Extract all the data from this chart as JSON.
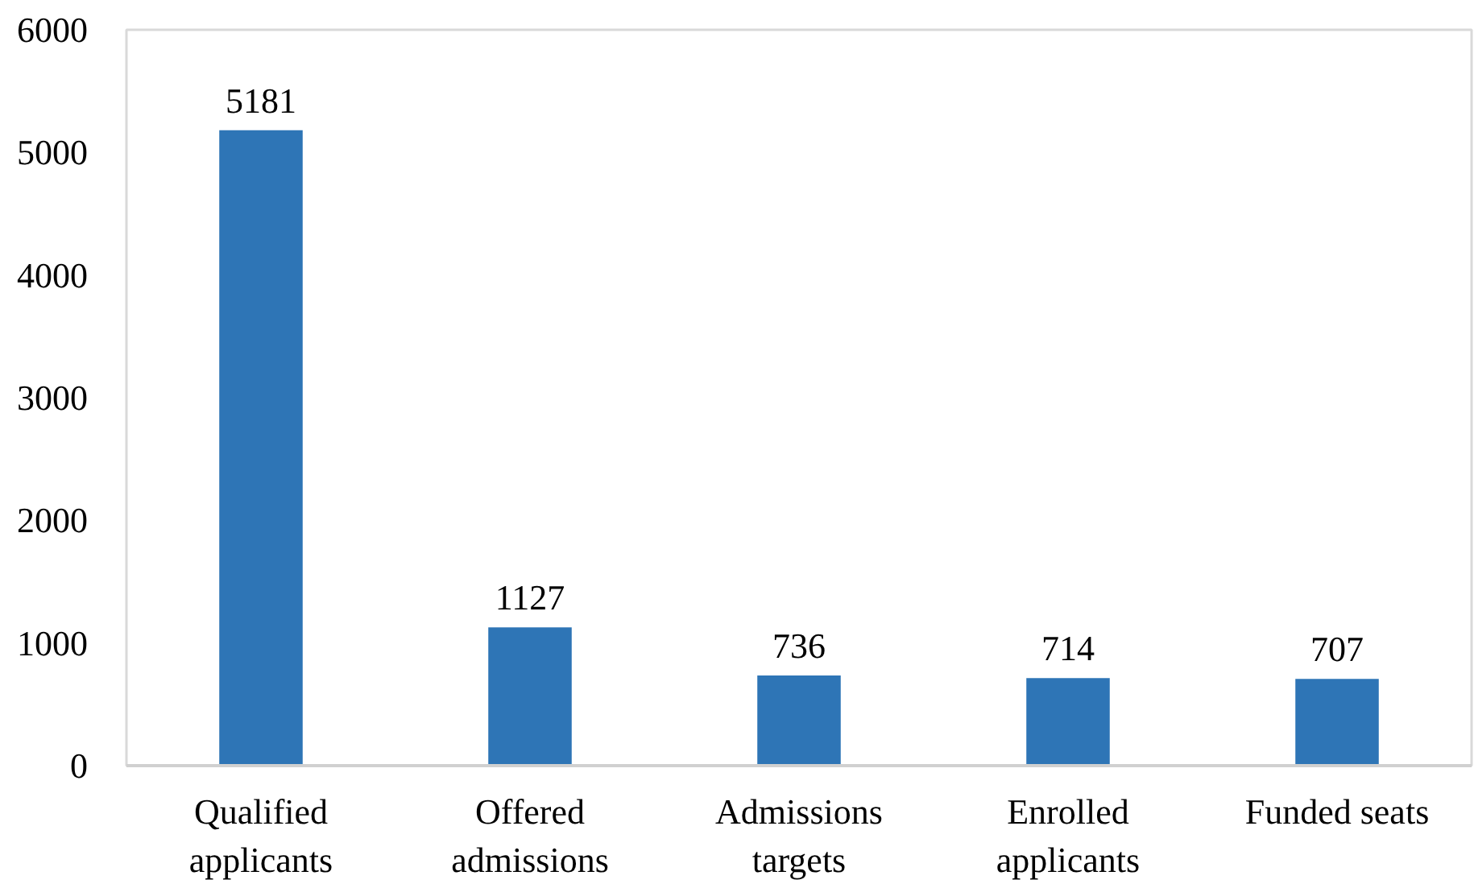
{
  "chart_data": {
    "type": "bar",
    "categories": [
      "Qualified applicants",
      "Offered admissions",
      "Admissions targets",
      "Enrolled applicants",
      "Funded seats"
    ],
    "values": [
      5181,
      1127,
      736,
      714,
      707
    ],
    "color": "#2e75b6",
    "ylim": [
      0,
      6000
    ],
    "yticks": [
      0,
      1000,
      2000,
      3000,
      4000,
      5000,
      6000
    ],
    "data_labels": true
  }
}
